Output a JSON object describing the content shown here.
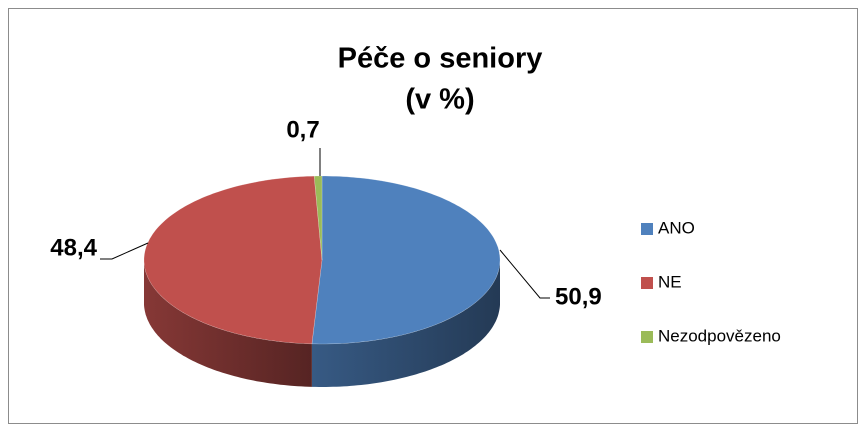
{
  "chart_data": {
    "type": "pie",
    "title": "Péče o seniory",
    "subtitle": "(v %)",
    "categories": [
      "ANO",
      "NE",
      "Nezodpovězeno"
    ],
    "values": [
      50.9,
      48.4,
      0.7
    ],
    "value_labels": [
      "50,9",
      "48,4",
      "0,7"
    ],
    "colors": [
      "#4f81bd",
      "#c0504d",
      "#9bbb59"
    ],
    "legend": "right"
  }
}
